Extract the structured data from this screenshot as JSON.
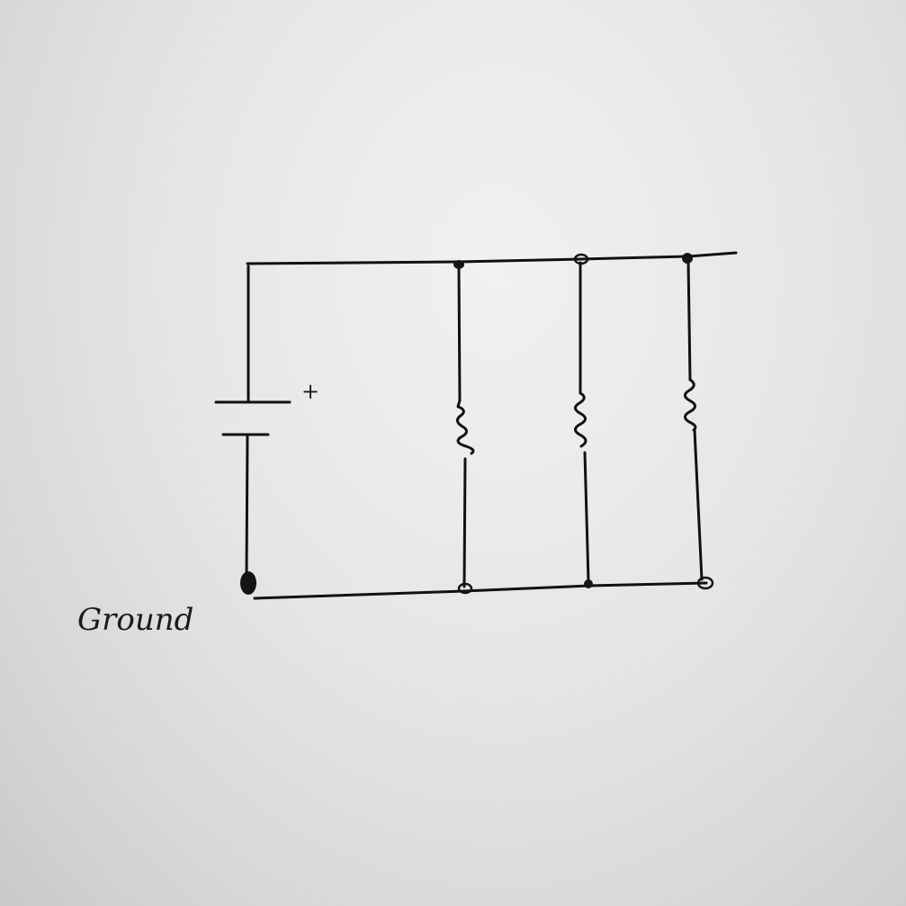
{
  "diagram": {
    "battery": {
      "polarity_label": "+"
    },
    "ground_label": "Ground",
    "resistor_count": 3,
    "colors": {
      "ink": "#111111",
      "paper": "#e8e8e6"
    }
  }
}
